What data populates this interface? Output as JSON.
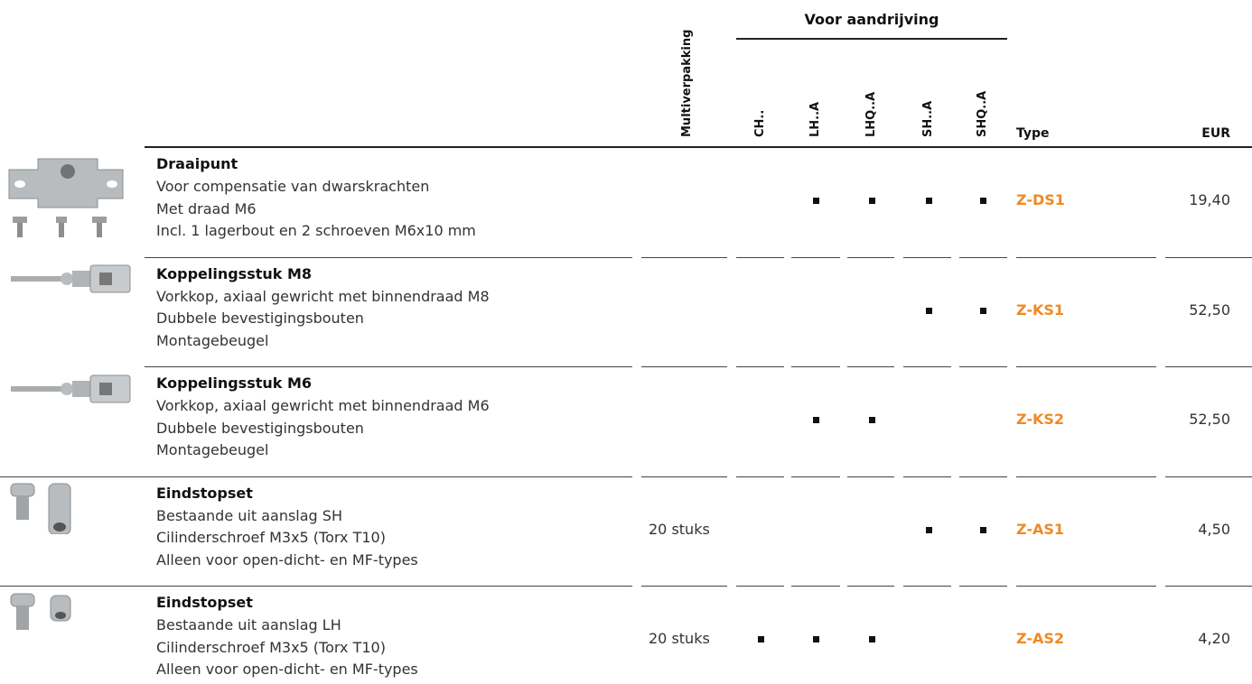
{
  "header": {
    "group": "Voor aandrijving",
    "multipack": "Multiverpakking",
    "drives": [
      "CH..",
      "LH..A",
      "LHQ..A",
      "SH..A",
      "SHQ..A"
    ],
    "type": "Type",
    "price": "EUR"
  },
  "rows": [
    {
      "title": "Draaipunt",
      "lines": [
        "Voor compensatie van dwarskrachten",
        "Met draad M6",
        "Incl. 1 lagerbout en 2 schroeven M6x10 mm"
      ],
      "drives": [
        false,
        true,
        true,
        true,
        true
      ],
      "type": "Z-DS1",
      "price": "19,40"
    },
    {
      "title": "Koppelingsstuk M8",
      "lines": [
        "Vorkkop, axiaal gewricht met binnendraad M8",
        "Dubbele bevestigingsbouten",
        "Montagebeugel"
      ],
      "drives": [
        false,
        false,
        false,
        true,
        true
      ],
      "type": "Z-KS1",
      "price": "52,50"
    },
    {
      "title": "Koppelingsstuk M6",
      "lines": [
        "Vorkkop, axiaal gewricht met binnendraad M6",
        "Dubbele bevestigingsbouten",
        "Montagebeugel"
      ],
      "drives": [
        false,
        true,
        true,
        false,
        false
      ],
      "type": "Z-KS2",
      "price": "52,50"
    },
    {
      "title": "Eindstopset",
      "lines": [
        "Bestaande uit aanslag SH",
        "Cilinderschroef M3x5 (Torx T10)",
        "Alleen voor open-dicht- en MF-types"
      ],
      "multipack": "20 stuks",
      "drives": [
        false,
        false,
        false,
        true,
        true
      ],
      "type": "Z-AS1",
      "price": "4,50"
    },
    {
      "title": "Eindstopset",
      "lines": [
        "Bestaande uit aanslag LH",
        "Cilinderschroef M3x5 (Torx T10)",
        "Alleen voor open-dicht- en MF-types"
      ],
      "multipack": "20 stuks",
      "drives": [
        true,
        true,
        true,
        false,
        false
      ],
      "type": "Z-AS2",
      "price": "4,20"
    }
  ]
}
